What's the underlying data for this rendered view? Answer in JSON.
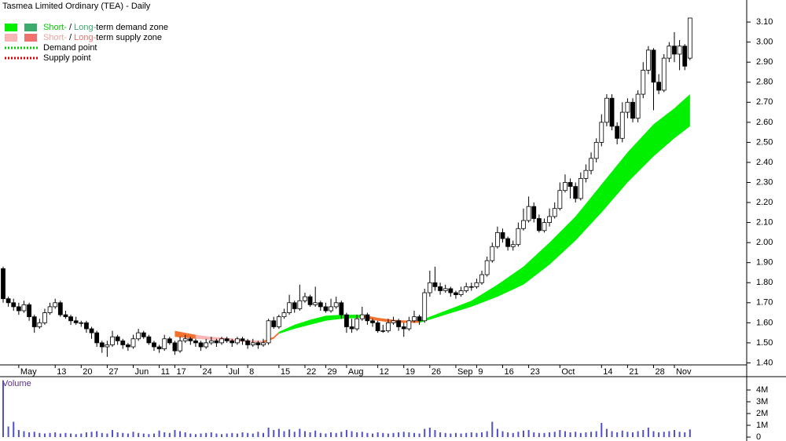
{
  "chart_data": {
    "type": "candlestick",
    "title": "Tasmea Limited Ordinary (TEA) - Daily",
    "categories": [
      null,
      null,
      null,
      "May",
      null,
      null,
      null,
      null,
      null,
      null,
      "13",
      null,
      null,
      null,
      null,
      "20",
      null,
      null,
      null,
      null,
      "27",
      null,
      null,
      null,
      null,
      "Jun",
      null,
      null,
      null,
      null,
      "11",
      null,
      null,
      "17",
      null,
      null,
      null,
      null,
      "24",
      null,
      null,
      null,
      null,
      "Jul",
      null,
      null,
      null,
      "8",
      null,
      null,
      null,
      null,
      null,
      "15",
      null,
      null,
      null,
      null,
      "22",
      null,
      null,
      null,
      "29",
      null,
      null,
      null,
      "Aug",
      null,
      null,
      null,
      null,
      null,
      "12",
      null,
      null,
      null,
      null,
      "19",
      null,
      null,
      null,
      null,
      "26",
      null,
      null,
      null,
      null,
      "Sep",
      null,
      null,
      null,
      "9",
      null,
      null,
      null,
      null,
      "16",
      null,
      null,
      null,
      null,
      "23",
      null,
      null,
      null,
      null,
      null,
      "Oct",
      null,
      null,
      null,
      null,
      null,
      null,
      null,
      "14",
      null,
      null,
      null,
      null,
      "21",
      null,
      null,
      null,
      null,
      "28",
      null,
      null,
      null,
      "Nov",
      null,
      null,
      null
    ],
    "candles": {
      "open": [
        1.87,
        1.72,
        1.7,
        1.68,
        1.66,
        1.69,
        1.63,
        1.58,
        1.6,
        1.65,
        1.68,
        1.7,
        1.64,
        1.63,
        1.61,
        1.6,
        1.6,
        1.57,
        1.55,
        1.5,
        1.48,
        1.49,
        1.53,
        1.51,
        1.49,
        1.48,
        1.52,
        1.55,
        1.53,
        1.5,
        1.48,
        1.47,
        1.52,
        1.5,
        1.46,
        1.51,
        1.52,
        1.51,
        1.5,
        1.48,
        1.5,
        1.51,
        1.5,
        1.52,
        1.51,
        1.5,
        1.52,
        1.51,
        1.49,
        1.5,
        1.49,
        1.5,
        1.61,
        1.58,
        1.63,
        1.65,
        1.7,
        1.67,
        1.71,
        1.73,
        1.69,
        1.7,
        1.68,
        1.66,
        1.68,
        1.7,
        1.64,
        1.58,
        1.57,
        1.62,
        1.64,
        1.61,
        1.6,
        1.56,
        1.56,
        1.6,
        1.61,
        1.58,
        1.57,
        1.61,
        1.63,
        1.61,
        1.75,
        1.8,
        1.78,
        1.76,
        1.77,
        1.75,
        1.74,
        1.76,
        1.78,
        1.78,
        1.8,
        1.84,
        1.91,
        1.98,
        2.05,
        2.02,
        1.98,
        1.99,
        2.07,
        2.11,
        2.18,
        2.12,
        2.06,
        2.1,
        2.13,
        2.17,
        2.26,
        2.3,
        2.28,
        2.22,
        2.32,
        2.36,
        2.42,
        2.5,
        2.6,
        2.72,
        2.58,
        2.52,
        2.65,
        2.7,
        2.62,
        2.74,
        2.86,
        2.96,
        2.8,
        2.76,
        2.92,
        2.98,
        2.94,
        2.98,
        2.92
      ],
      "high": [
        1.88,
        1.73,
        1.72,
        1.7,
        1.71,
        1.7,
        1.64,
        1.62,
        1.67,
        1.7,
        1.72,
        1.71,
        1.66,
        1.64,
        1.63,
        1.61,
        1.61,
        1.58,
        1.56,
        1.51,
        1.51,
        1.56,
        1.54,
        1.52,
        1.5,
        1.54,
        1.57,
        1.56,
        1.54,
        1.51,
        1.49,
        1.54,
        1.53,
        1.51,
        1.53,
        1.54,
        1.53,
        1.52,
        1.51,
        1.52,
        1.53,
        1.52,
        1.53,
        1.53,
        1.52,
        1.53,
        1.53,
        1.52,
        1.52,
        1.51,
        1.52,
        1.62,
        1.63,
        1.64,
        1.67,
        1.74,
        1.71,
        1.79,
        1.75,
        1.74,
        1.78,
        1.71,
        1.7,
        1.72,
        1.73,
        1.71,
        1.65,
        1.62,
        1.64,
        1.68,
        1.65,
        1.62,
        1.61,
        1.59,
        1.62,
        1.63,
        1.62,
        1.6,
        1.63,
        1.66,
        1.64,
        1.77,
        1.86,
        1.88,
        1.8,
        1.79,
        1.78,
        1.76,
        1.78,
        1.8,
        1.8,
        1.82,
        1.86,
        1.93,
        2.0,
        2.08,
        2.07,
        2.03,
        2.01,
        2.1,
        2.17,
        2.23,
        2.2,
        2.14,
        2.12,
        2.17,
        2.2,
        2.3,
        2.34,
        2.32,
        2.3,
        2.35,
        2.39,
        2.45,
        2.52,
        2.64,
        2.74,
        2.74,
        2.6,
        2.7,
        2.72,
        2.72,
        2.76,
        2.9,
        2.98,
        2.97,
        2.84,
        2.94,
        3.0,
        3.05,
        3.01,
        2.99,
        3.12
      ],
      "low": [
        1.7,
        1.68,
        1.66,
        1.64,
        1.65,
        1.61,
        1.55,
        1.57,
        1.59,
        1.64,
        1.67,
        1.63,
        1.62,
        1.59,
        1.59,
        1.58,
        1.55,
        1.52,
        1.48,
        1.45,
        1.43,
        1.48,
        1.49,
        1.47,
        1.46,
        1.47,
        1.51,
        1.52,
        1.49,
        1.46,
        1.45,
        1.46,
        1.49,
        1.44,
        1.45,
        1.5,
        1.49,
        1.48,
        1.46,
        1.47,
        1.49,
        1.48,
        1.49,
        1.5,
        1.48,
        1.49,
        1.49,
        1.47,
        1.48,
        1.47,
        1.48,
        1.49,
        1.57,
        1.57,
        1.62,
        1.64,
        1.65,
        1.66,
        1.7,
        1.68,
        1.68,
        1.66,
        1.65,
        1.65,
        1.67,
        1.62,
        1.55,
        1.55,
        1.56,
        1.61,
        1.59,
        1.58,
        1.55,
        1.55,
        1.55,
        1.59,
        1.56,
        1.53,
        1.56,
        1.6,
        1.59,
        1.6,
        1.73,
        1.76,
        1.74,
        1.75,
        1.73,
        1.72,
        1.73,
        1.75,
        1.76,
        1.77,
        1.79,
        1.83,
        1.9,
        1.97,
        2.0,
        1.96,
        1.96,
        1.98,
        2.06,
        2.1,
        2.1,
        2.05,
        2.05,
        2.08,
        2.12,
        2.16,
        2.25,
        2.22,
        2.2,
        2.21,
        2.3,
        2.34,
        2.4,
        2.48,
        2.58,
        2.56,
        2.49,
        2.5,
        2.62,
        2.6,
        2.6,
        2.72,
        2.84,
        2.66,
        2.74,
        2.75,
        2.9,
        2.9,
        2.86,
        2.86,
        2.91
      ],
      "close": [
        1.72,
        1.7,
        1.68,
        1.66,
        1.69,
        1.63,
        1.58,
        1.6,
        1.65,
        1.68,
        1.7,
        1.64,
        1.63,
        1.61,
        1.6,
        1.6,
        1.57,
        1.55,
        1.5,
        1.48,
        1.49,
        1.53,
        1.51,
        1.49,
        1.48,
        1.52,
        1.55,
        1.53,
        1.5,
        1.48,
        1.47,
        1.52,
        1.5,
        1.46,
        1.51,
        1.52,
        1.51,
        1.5,
        1.48,
        1.5,
        1.51,
        1.5,
        1.52,
        1.51,
        1.5,
        1.52,
        1.51,
        1.49,
        1.5,
        1.49,
        1.5,
        1.61,
        1.58,
        1.63,
        1.65,
        1.7,
        1.67,
        1.71,
        1.73,
        1.69,
        1.7,
        1.68,
        1.66,
        1.68,
        1.7,
        1.64,
        1.58,
        1.57,
        1.62,
        1.64,
        1.61,
        1.6,
        1.56,
        1.56,
        1.6,
        1.61,
        1.58,
        1.57,
        1.61,
        1.63,
        1.61,
        1.75,
        1.8,
        1.78,
        1.76,
        1.77,
        1.75,
        1.74,
        1.76,
        1.78,
        1.78,
        1.8,
        1.84,
        1.91,
        1.98,
        2.05,
        2.02,
        1.98,
        1.99,
        2.07,
        2.11,
        2.18,
        2.12,
        2.06,
        2.1,
        2.13,
        2.17,
        2.26,
        2.3,
        2.28,
        2.22,
        2.32,
        2.36,
        2.42,
        2.5,
        2.6,
        2.72,
        2.58,
        2.52,
        2.65,
        2.7,
        2.62,
        2.74,
        2.86,
        2.96,
        2.8,
        2.76,
        2.92,
        2.98,
        2.94,
        2.98,
        2.88,
        3.12
      ]
    },
    "ylim": [
      1.39,
      3.21
    ],
    "yticks": [
      {
        "value": 1.4,
        "label": "1.40"
      },
      {
        "value": 1.5,
        "label": "1.50"
      },
      {
        "value": 1.6,
        "label": "1.60"
      },
      {
        "value": 1.7,
        "label": "1.70"
      },
      {
        "value": 1.8,
        "label": "1.80"
      },
      {
        "value": 1.9,
        "label": "1.90"
      },
      {
        "value": 2.0,
        "label": "2.00"
      },
      {
        "value": 2.1,
        "label": "2.10"
      },
      {
        "value": 2.2,
        "label": "2.20"
      },
      {
        "value": 2.3,
        "label": "2.30"
      },
      {
        "value": 2.4,
        "label": "2.40"
      },
      {
        "value": 2.5,
        "label": "2.50"
      },
      {
        "value": 2.6,
        "label": "2.60"
      },
      {
        "value": 2.7,
        "label": "2.70"
      },
      {
        "value": 2.8,
        "label": "2.80"
      },
      {
        "value": 2.9,
        "label": "2.90"
      },
      {
        "value": 3.0,
        "label": "3.00"
      },
      {
        "value": 3.1,
        "label": "3.10"
      }
    ],
    "zones": [
      {
        "color": "#f4702d",
        "x": [
          33,
          35,
          37
        ],
        "upper": [
          1.56,
          1.55,
          1.54
        ],
        "lower": [
          1.53,
          1.525,
          1.52
        ]
      },
      {
        "color": "#f9b4b4",
        "x": [
          37,
          40,
          43,
          46,
          50
        ],
        "upper": [
          1.54,
          1.53,
          1.525,
          1.515,
          1.51
        ],
        "lower": [
          1.52,
          1.515,
          1.51,
          1.505,
          1.5
        ]
      },
      {
        "color": "#f4702d",
        "x": [
          50,
          52,
          53
        ],
        "upper": [
          1.51,
          1.53,
          1.555
        ],
        "lower": [
          1.5,
          1.52,
          1.545
        ]
      },
      {
        "color": "#00f000",
        "x": [
          53,
          56,
          59,
          62,
          65,
          69
        ],
        "upper": [
          1.555,
          1.59,
          1.615,
          1.635,
          1.64,
          1.64
        ],
        "lower": [
          1.545,
          1.57,
          1.59,
          1.61,
          1.62,
          1.625
        ]
      },
      {
        "color": "#f4702d",
        "x": [
          69,
          72,
          75,
          78,
          80
        ],
        "upper": [
          1.64,
          1.625,
          1.615,
          1.61,
          1.61
        ],
        "lower": [
          1.625,
          1.61,
          1.6,
          1.6,
          1.6
        ]
      },
      {
        "color": "#00f000",
        "x": [
          80,
          85,
          90,
          95,
          100,
          105,
          110,
          115,
          120,
          125,
          129,
          132
        ],
        "upper": [
          1.61,
          1.66,
          1.71,
          1.79,
          1.88,
          2.0,
          2.13,
          2.29,
          2.45,
          2.59,
          2.67,
          2.74
        ],
        "lower": [
          1.6,
          1.64,
          1.68,
          1.73,
          1.79,
          1.89,
          2.01,
          2.15,
          2.3,
          2.43,
          2.52,
          2.58
        ]
      }
    ],
    "legend": [
      {
        "colors": [
          "#00f000",
          "#3daa6e"
        ],
        "parts": [
          {
            "text": "Short-",
            "color": "#00d000"
          },
          {
            "text": " / ",
            "color": "#000"
          },
          {
            "text": "Long-",
            "color": "#3daa6e"
          },
          {
            "text": "term demand zone",
            "color": "#000"
          }
        ]
      },
      {
        "colors": [
          "#f9b4b4",
          "#f07070"
        ],
        "parts": [
          {
            "text": "Short-",
            "color": "#f9a0a0"
          },
          {
            "text": " / ",
            "color": "#000"
          },
          {
            "text": "Long-",
            "color": "#f07070"
          },
          {
            "text": "term supply zone",
            "color": "#000"
          }
        ]
      },
      {
        "dotted": "#00d000",
        "parts": [
          {
            "text": "Demand point",
            "color": "#000"
          }
        ]
      },
      {
        "dotted": "#e00000",
        "parts": [
          {
            "text": "Supply point",
            "color": "#000"
          }
        ]
      }
    ],
    "volume": {
      "title": "Volume",
      "color": "#5050c8",
      "values": [
        4800000,
        900000,
        1300000,
        600000,
        500000,
        400000,
        450000,
        350000,
        300000,
        350000,
        400000,
        300000,
        350000,
        300000,
        250000,
        300000,
        400000,
        450000,
        500000,
        350000,
        300000,
        600000,
        400000,
        350000,
        300000,
        450000,
        350000,
        300000,
        250000,
        300000,
        550000,
        400000,
        350000,
        600000,
        500000,
        400000,
        300000,
        250000,
        300000,
        350000,
        400000,
        300000,
        250000,
        300000,
        350000,
        300000,
        400000,
        350000,
        300000,
        450000,
        350000,
        800000,
        600000,
        700000,
        500000,
        650000,
        450000,
        700000,
        500000,
        400000,
        550000,
        350000,
        300000,
        400000,
        350000,
        450000,
        600000,
        500000,
        400000,
        450000,
        350000,
        300000,
        400000,
        350000,
        300000,
        350000,
        400000,
        450000,
        400000,
        350000,
        300000,
        700000,
        800000,
        600000,
        400000,
        350000,
        300000,
        350000,
        300000,
        350000,
        400000,
        350000,
        400000,
        500000,
        1300000,
        700000,
        500000,
        400000,
        350000,
        450000,
        550000,
        600000,
        400000,
        350000,
        350000,
        400000,
        450000,
        600000,
        500000,
        400000,
        450000,
        350000,
        400000,
        450000,
        500000,
        1200000,
        700000,
        500000,
        400000,
        550000,
        450000,
        400000,
        500000,
        600000,
        800000,
        500000,
        400000,
        450000,
        500000,
        600000,
        450000,
        400000,
        650000
      ]
    },
    "vlim": [
      0,
      5000000
    ],
    "vticks": [
      0,
      {
        "value": 1000000,
        "label": "1M"
      },
      {
        "value": 2000000,
        "label": "2M"
      },
      {
        "value": 3000000,
        "label": "3M"
      },
      {
        "value": 4000000,
        "label": "4M"
      }
    ]
  }
}
